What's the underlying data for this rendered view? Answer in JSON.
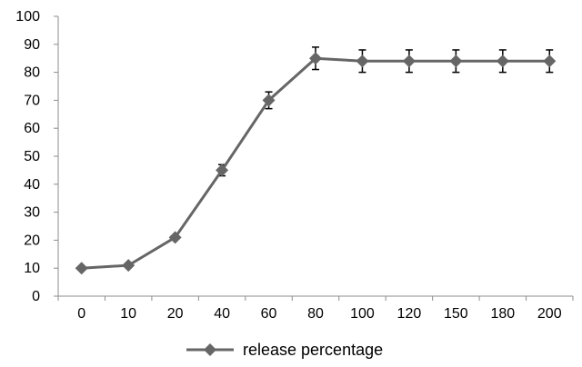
{
  "chart_data": {
    "type": "line",
    "categories": [
      "0",
      "10",
      "20",
      "40",
      "60",
      "80",
      "100",
      "120",
      "150",
      "180",
      "200"
    ],
    "series": [
      {
        "name": "release percentage",
        "values": [
          10,
          11,
          21,
          45,
          70,
          85,
          84,
          84,
          84,
          84,
          84
        ],
        "error": [
          0,
          0,
          0,
          2,
          3,
          4,
          4,
          4,
          4,
          4,
          4
        ]
      }
    ],
    "ylim": [
      0,
      100
    ],
    "yticks": [
      0,
      10,
      20,
      30,
      40,
      50,
      60,
      70,
      80,
      90,
      100
    ],
    "grid": false,
    "legend_position": "bottom",
    "colors": {
      "series": "#666666",
      "error_bar": "#000000",
      "axis": "#8c8c8c"
    }
  }
}
